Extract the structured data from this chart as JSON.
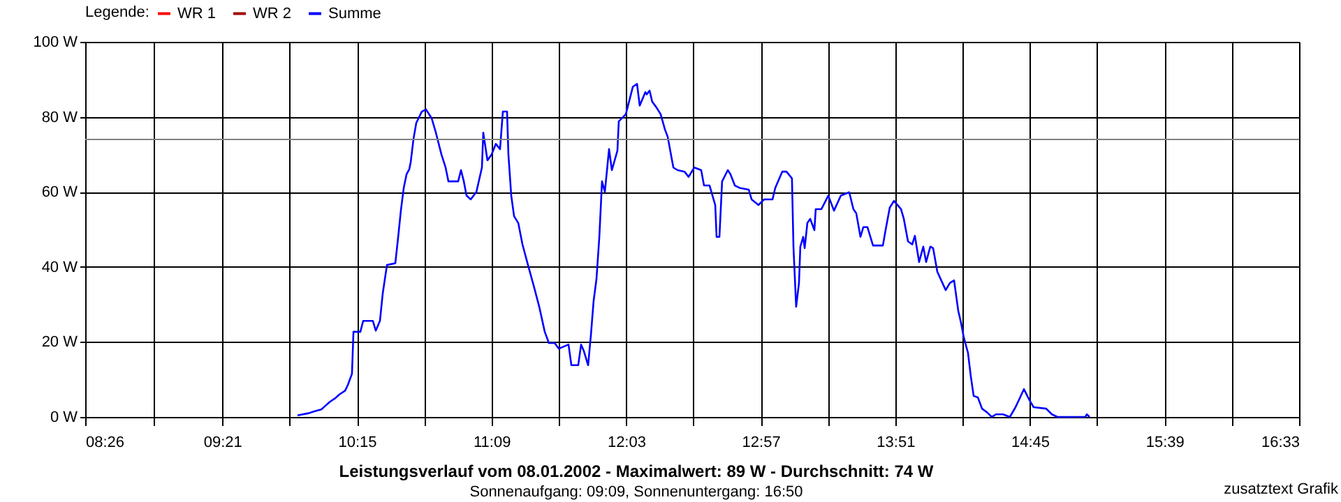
{
  "chart_data": {
    "type": "line",
    "title": "Leistungsverlauf vom 08.01.2002 - Maximalwert: 89 W - Durchschnitt: 74 W",
    "subtitle": "Sonnenaufgang: 09:09, Sonnenuntergang: 16:50",
    "legend_title": "Legende:",
    "legend": "top left",
    "grid": true,
    "line_style": "solid",
    "marker": "none",
    "annotations": [
      "zusatztext Grafik"
    ],
    "xlim": [
      8.4333,
      16.55
    ],
    "xticks": [
      {
        "value": 8.4333,
        "label": "08:26"
      },
      {
        "value": 8.892,
        "label": null
      },
      {
        "value": 9.35,
        "label": "09:21"
      },
      {
        "value": 9.8,
        "label": null
      },
      {
        "value": 10.25,
        "label": "10:15"
      },
      {
        "value": 10.7,
        "label": null
      },
      {
        "value": 11.15,
        "label": "11:09"
      },
      {
        "value": 11.6,
        "label": null
      },
      {
        "value": 12.05,
        "label": "12:03"
      },
      {
        "value": 12.5,
        "label": null
      },
      {
        "value": 12.95,
        "label": "12:57"
      },
      {
        "value": 13.4,
        "label": null
      },
      {
        "value": 13.85,
        "label": "13:51"
      },
      {
        "value": 14.3,
        "label": null
      },
      {
        "value": 14.75,
        "label": "14:45"
      },
      {
        "value": 15.2,
        "label": null
      },
      {
        "value": 15.65,
        "label": "15:39"
      },
      {
        "value": 16.1,
        "label": null
      },
      {
        "value": 16.55,
        "label": "16:33"
      }
    ],
    "ylim": [
      0,
      100
    ],
    "yticks": [
      {
        "value": 0,
        "label": "0 W"
      },
      {
        "value": 20,
        "label": "20 W"
      },
      {
        "value": 40,
        "label": "40 W"
      },
      {
        "value": 60,
        "label": "60 W"
      },
      {
        "value": 80,
        "label": "80 W"
      },
      {
        "value": 100,
        "label": "100 W"
      }
    ],
    "ref_lines": [
      {
        "axis": "y",
        "value": 74,
        "label": null,
        "color": "#808080"
      }
    ],
    "series": [
      {
        "name": "WR 1",
        "color": "#ff0000"
      },
      {
        "name": "WR 2",
        "color": "#a00000"
      },
      {
        "name": "Summe",
        "color": "#0000ff",
        "x": [
          9.853,
          9.928,
          9.965,
          10.012,
          10.04,
          10.068,
          10.105,
          10.133,
          10.171,
          10.189,
          10.217,
          10.227,
          10.273,
          10.292,
          10.357,
          10.376,
          10.404,
          10.423,
          10.451,
          10.507,
          10.526,
          10.544,
          10.563,
          10.582,
          10.6,
          10.61,
          10.628,
          10.647,
          10.684,
          10.712,
          10.75,
          10.778,
          10.815,
          10.843,
          10.862,
          10.927,
          10.946,
          10.965,
          10.983,
          11.011,
          11.049,
          11.086,
          11.095,
          11.123,
          11.151,
          11.179,
          11.207,
          11.226,
          11.254,
          11.263,
          11.282,
          11.301,
          11.329,
          11.357,
          11.394,
          11.432,
          11.469,
          11.506,
          11.534,
          11.572,
          11.6,
          11.665,
          11.684,
          11.73,
          11.749,
          11.768,
          11.796,
          11.815,
          11.833,
          11.852,
          11.871,
          11.889,
          11.908,
          11.936,
          11.955,
          11.992,
          12.001,
          12.048,
          12.095,
          12.123,
          12.141,
          12.179,
          12.188,
          12.207,
          12.225,
          12.253,
          12.281,
          12.31,
          12.328,
          12.366,
          12.394,
          12.44,
          12.468,
          12.506,
          12.552,
          12.571,
          12.608,
          12.646,
          12.655,
          12.674,
          12.692,
          12.73,
          12.748,
          12.777,
          12.814,
          12.87,
          12.889,
          12.935,
          12.973,
          13.029,
          13.047,
          13.094,
          13.122,
          13.159,
          13.169,
          13.187,
          13.206,
          13.215,
          13.234,
          13.244,
          13.262,
          13.281,
          13.309,
          13.318,
          13.356,
          13.402,
          13.421,
          13.44,
          13.486,
          13.542,
          13.57,
          13.589,
          13.617,
          13.636,
          13.664,
          13.701,
          13.767,
          13.785,
          13.813,
          13.841,
          13.888,
          13.907,
          13.935,
          13.963,
          13.981,
          14.009,
          14.037,
          14.056,
          14.084,
          14.103,
          14.131,
          14.187,
          14.215,
          14.243,
          14.271,
          14.29,
          14.308,
          14.336,
          14.355,
          14.374,
          14.402,
          14.43,
          14.467,
          14.495,
          14.523,
          14.57,
          14.616,
          14.654,
          14.71,
          14.747,
          14.775,
          14.859,
          14.897,
          14.934,
          15.121,
          15.13,
          15.149
        ],
        "values": [
          0.4,
          1,
          1.5,
          2,
          3,
          4,
          5,
          6,
          7,
          8.5,
          11.5,
          22.7,
          22.7,
          25.6,
          25.6,
          23,
          25.6,
          33,
          40.5,
          41,
          48,
          55,
          61,
          64.7,
          66,
          68,
          74,
          78.4,
          81.4,
          82,
          79.6,
          75.8,
          70,
          66.5,
          62.8,
          62.8,
          65.8,
          62.8,
          59,
          58,
          60,
          66.5,
          75.8,
          68.4,
          70,
          72.8,
          71.4,
          81.4,
          81.4,
          70,
          59,
          53.5,
          51.7,
          46,
          40.5,
          35,
          29.4,
          22.7,
          19.7,
          19.7,
          18.2,
          19.3,
          13.8,
          13.8,
          19.3,
          17.5,
          13.8,
          22,
          31,
          36.8,
          48,
          62.8,
          60,
          71.4,
          65.8,
          71,
          78.8,
          80.7,
          88,
          88.8,
          83,
          86.6,
          86,
          87,
          84,
          82.5,
          80.7,
          76.6,
          74.7,
          66.5,
          65.8,
          65.4,
          64,
          66.5,
          65.8,
          61.7,
          61.7,
          56.5,
          48,
          48,
          62.8,
          65.8,
          64.7,
          61.7,
          61,
          60.6,
          58,
          56.5,
          58,
          58,
          61,
          65.4,
          65.4,
          63.6,
          45.4,
          29.4,
          35.7,
          45.4,
          48,
          45,
          51.7,
          52.8,
          49.8,
          55.4,
          55.4,
          59,
          57,
          55,
          59,
          59.9,
          55.4,
          54.3,
          48,
          50.6,
          50.6,
          45.7,
          45.7,
          49.8,
          55.8,
          57.6,
          55.4,
          52.8,
          46.8,
          46,
          48.3,
          41.3,
          45.4,
          41.3,
          45.4,
          45,
          38.7,
          33.8,
          35.7,
          36.4,
          28.3,
          25,
          21.2,
          17.1,
          10.8,
          5.6,
          5.2,
          2.2,
          1.1,
          0,
          0.7,
          0.7,
          0,
          2.6,
          7.4,
          4.5,
          2.6,
          2.2,
          0.7,
          0,
          0,
          0.7,
          0
        ]
      }
    ]
  }
}
